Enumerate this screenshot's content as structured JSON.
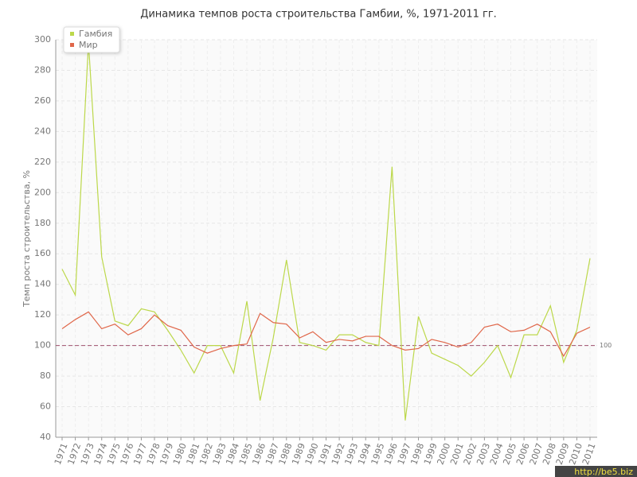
{
  "chart_data": {
    "type": "line",
    "title": "Динамика темпов роста строительства Гамбии, %, 1971-2011 гг.",
    "y_label": "Темп роста строительства, %",
    "categories": [
      "1971",
      "1972",
      "1973",
      "1974",
      "1975",
      "1976",
      "1977",
      "1978",
      "1979",
      "1980",
      "1981",
      "1982",
      "1983",
      "1984",
      "1985",
      "1986",
      "1987",
      "1988",
      "1989",
      "1990",
      "1991",
      "1992",
      "1993",
      "1994",
      "1995",
      "1996",
      "1997",
      "1998",
      "1999",
      "2000",
      "2001",
      "2002",
      "2003",
      "2004",
      "2005",
      "2006",
      "2007",
      "2008",
      "2009",
      "2010",
      "2011"
    ],
    "series": [
      {
        "name": "Гамбия",
        "color": "#bcd84a",
        "values": [
          150,
          133,
          298,
          158,
          116,
          113,
          124,
          122,
          110,
          97,
          82,
          100,
          100,
          82,
          129,
          64,
          105,
          156,
          102,
          100,
          97,
          107,
          107,
          102,
          100,
          217,
          51,
          119,
          95,
          91,
          87,
          80,
          89,
          100,
          79,
          107,
          107,
          126,
          89,
          110,
          157
        ]
      },
      {
        "name": "Мир",
        "color": "#e0674a",
        "values": [
          111,
          117,
          122,
          111,
          114,
          107,
          111,
          120,
          113,
          110,
          99,
          95,
          98,
          100,
          101,
          121,
          115,
          114,
          105,
          109,
          102,
          104,
          103,
          106,
          106,
          100,
          97,
          98,
          104,
          102,
          99,
          102,
          112,
          114,
          109,
          110,
          114,
          109,
          93,
          108,
          112
        ]
      }
    ],
    "reference": {
      "value": 100,
      "color": "#a0506e"
    },
    "ylim": [
      40,
      300
    ],
    "yticks": [
      40,
      60,
      80,
      100,
      120,
      140,
      160,
      180,
      200,
      220,
      240,
      260,
      280,
      300
    ],
    "grid": true,
    "legend": "top-left",
    "watermark": "http://be5.biz"
  }
}
